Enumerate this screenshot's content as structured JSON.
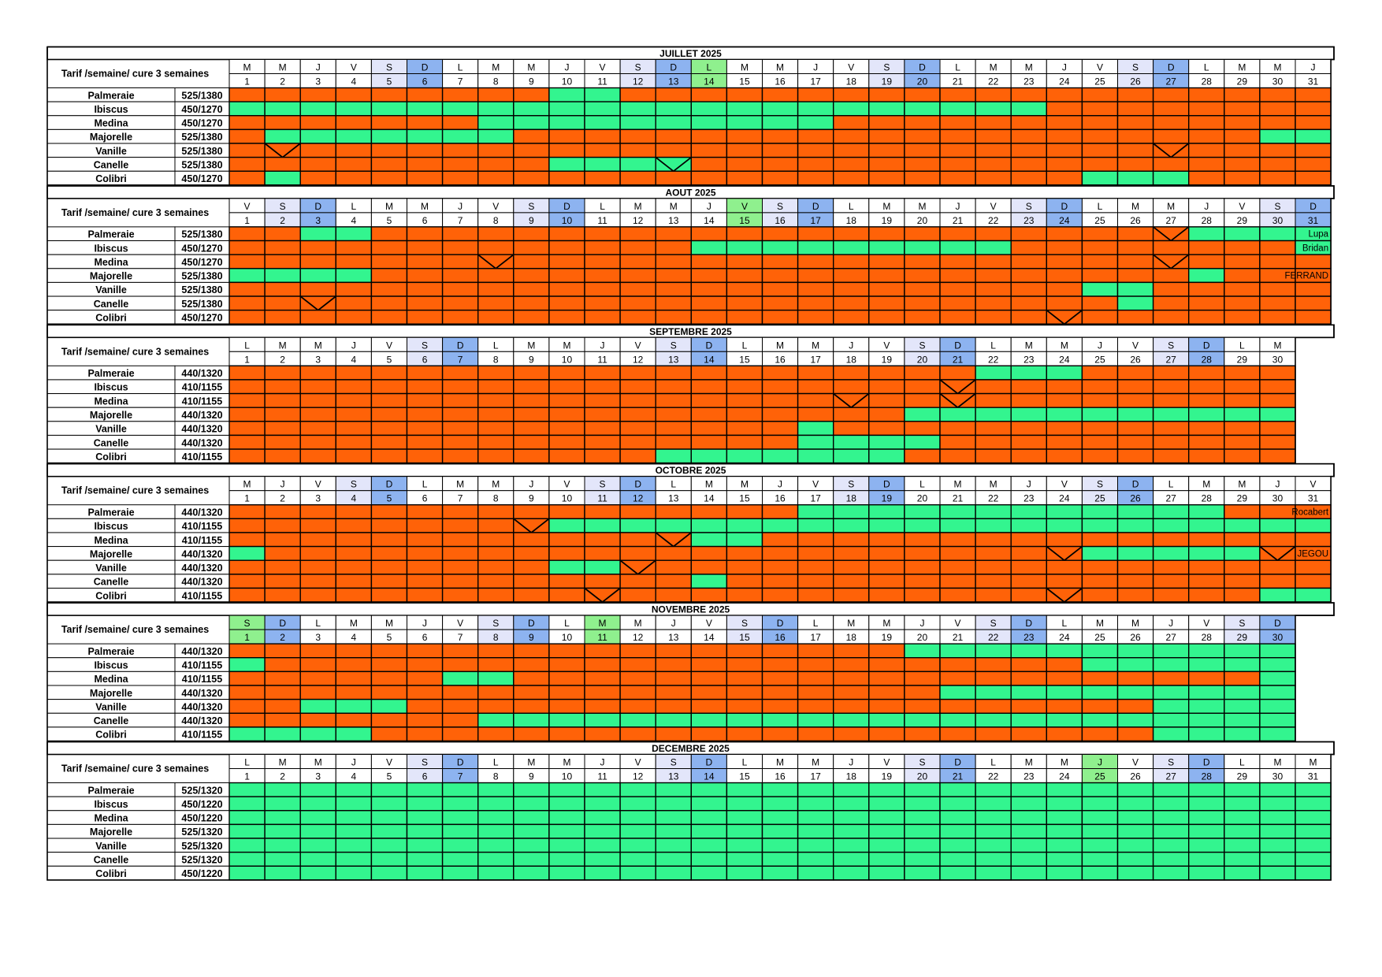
{
  "tarif_label": "Tarif /semaine/ cure 3 semaines",
  "colors": {
    "available": "#33F58F",
    "booked": "#FF6208",
    "sunday": "#8DB3F0",
    "saturday": "#E3E6FA",
    "holiday": "#8FF08E"
  },
  "legend": {
    "available": "green",
    "booked": "orange"
  },
  "months": [
    {
      "title": "JUILLET 2025",
      "days": [
        "M",
        "M",
        "J",
        "V",
        "S",
        "D",
        "L",
        "M",
        "M",
        "J",
        "V",
        "S",
        "D",
        "L",
        "M",
        "M",
        "J",
        "V",
        "S",
        "D",
        "L",
        "M",
        "M",
        "J",
        "V",
        "S",
        "D",
        "L",
        "M",
        "M",
        "J"
      ],
      "holidays": [
        14
      ],
      "rows": [
        {
          "name": "Palmeraie",
          "tarif": "525/1380",
          "green": [
            [
              10,
              11
            ]
          ],
          "ticks": []
        },
        {
          "name": "Ibiscus",
          "tarif": "450/1270",
          "green": [
            [
              1,
              23
            ]
          ],
          "ticks": []
        },
        {
          "name": "Medina",
          "tarif": "450/1270",
          "green": [
            [
              8,
              17
            ]
          ],
          "ticks": []
        },
        {
          "name": "Majorelle",
          "tarif": "525/1380",
          "green": [
            [
              2,
              8
            ],
            [
              30,
              31
            ]
          ],
          "ticks": []
        },
        {
          "name": "Vanille",
          "tarif": "525/1380",
          "green": [],
          "ticks": [
            2,
            27
          ]
        },
        {
          "name": "Canelle",
          "tarif": "525/1380",
          "green": [
            [
              10,
              13
            ]
          ],
          "ticks": [
            13
          ]
        },
        {
          "name": "Colibri",
          "tarif": "450/1270",
          "green": [
            [
              2,
              2
            ],
            [
              25,
              27
            ]
          ],
          "ticks": []
        }
      ]
    },
    {
      "title": "AOUT 2025",
      "days": [
        "V",
        "S",
        "D",
        "L",
        "M",
        "M",
        "J",
        "V",
        "S",
        "D",
        "L",
        "M",
        "M",
        "J",
        "V",
        "S",
        "D",
        "L",
        "M",
        "M",
        "J",
        "V",
        "S",
        "D",
        "L",
        "M",
        "M",
        "J",
        "V",
        "S",
        "D"
      ],
      "holidays": [
        15
      ],
      "rows": [
        {
          "name": "Palmeraie",
          "tarif": "525/1380",
          "green": [
            [
              3,
              4
            ],
            [
              28,
              31
            ]
          ],
          "ticks": [
            27
          ],
          "note": "Lupa"
        },
        {
          "name": "Ibiscus",
          "tarif": "450/1270",
          "green": [
            [
              14,
              22
            ],
            [
              31,
              31
            ]
          ],
          "ticks": [],
          "note": "Bridan"
        },
        {
          "name": "Medina",
          "tarif": "450/1270",
          "green": [],
          "ticks": [
            8,
            27
          ]
        },
        {
          "name": "Majorelle",
          "tarif": "525/1380",
          "green": [
            [
              1,
              4
            ],
            [
              28,
              28
            ]
          ],
          "ticks": [],
          "note": "FERRAND"
        },
        {
          "name": "Vanille",
          "tarif": "525/1380",
          "green": [
            [
              25,
              26
            ]
          ],
          "ticks": []
        },
        {
          "name": "Canelle",
          "tarif": "525/1380",
          "green": [
            [
              26,
              26
            ]
          ],
          "ticks": [
            3
          ]
        },
        {
          "name": "Colibri",
          "tarif": "450/1270",
          "green": [],
          "ticks": [
            24
          ]
        }
      ]
    },
    {
      "title": "SEPTEMBRE 2025",
      "days": [
        "L",
        "M",
        "M",
        "J",
        "V",
        "S",
        "D",
        "L",
        "M",
        "M",
        "J",
        "V",
        "S",
        "D",
        "L",
        "M",
        "M",
        "J",
        "V",
        "S",
        "D",
        "L",
        "M",
        "M",
        "J",
        "V",
        "S",
        "D",
        "L",
        "M"
      ],
      "holidays": [],
      "rows": [
        {
          "name": "Palmeraie",
          "tarif": "440/1320",
          "green": [
            [
              22,
              24
            ]
          ],
          "ticks": []
        },
        {
          "name": "Ibiscus",
          "tarif": "410/1155",
          "green": [],
          "ticks": [
            21
          ]
        },
        {
          "name": "Medina",
          "tarif": "410/1155",
          "green": [],
          "ticks": [
            18,
            21
          ]
        },
        {
          "name": "Majorelle",
          "tarif": "440/1320",
          "green": [
            [
              20,
              30
            ]
          ],
          "ticks": []
        },
        {
          "name": "Vanille",
          "tarif": "440/1320",
          "green": [
            [
              17,
              17
            ]
          ],
          "ticks": []
        },
        {
          "name": "Canelle",
          "tarif": "440/1320",
          "green": [
            [
              17,
              20
            ]
          ],
          "ticks": []
        },
        {
          "name": "Colibri",
          "tarif": "410/1155",
          "green": [
            [
              13,
              19
            ]
          ],
          "ticks": []
        }
      ]
    },
    {
      "title": "OCTOBRE 2025",
      "days": [
        "M",
        "J",
        "V",
        "S",
        "D",
        "L",
        "M",
        "M",
        "J",
        "V",
        "S",
        "D",
        "L",
        "M",
        "M",
        "J",
        "V",
        "S",
        "D",
        "L",
        "M",
        "M",
        "J",
        "V",
        "S",
        "D",
        "L",
        "M",
        "M",
        "J",
        "V"
      ],
      "holidays": [],
      "rows": [
        {
          "name": "Palmeraie",
          "tarif": "440/1320",
          "green": [
            [
              17,
              28
            ]
          ],
          "ticks": [],
          "note": "Rocabert"
        },
        {
          "name": "Ibiscus",
          "tarif": "410/1155",
          "green": [
            [
              10,
              31
            ]
          ],
          "ticks": [
            9
          ]
        },
        {
          "name": "Medina",
          "tarif": "410/1155",
          "green": [
            [
              14,
              15
            ]
          ],
          "ticks": [
            13
          ]
        },
        {
          "name": "Majorelle",
          "tarif": "440/1320",
          "green": [
            [
              1,
              1
            ],
            [
              25,
              29
            ]
          ],
          "ticks": [
            24,
            30
          ],
          "note": "JEGOU"
        },
        {
          "name": "Vanille",
          "tarif": "440/1320",
          "green": [
            [
              10,
              11
            ]
          ],
          "ticks": [
            12
          ]
        },
        {
          "name": "Canelle",
          "tarif": "440/1320",
          "green": [
            [
              14,
              14
            ]
          ],
          "ticks": []
        },
        {
          "name": "Colibri",
          "tarif": "410/1155",
          "green": [
            [
              30,
              31
            ]
          ],
          "ticks": [
            11,
            24
          ]
        }
      ]
    },
    {
      "title": "NOVEMBRE 2025",
      "days": [
        "S",
        "D",
        "L",
        "M",
        "M",
        "J",
        "V",
        "S",
        "D",
        "L",
        "M",
        "M",
        "J",
        "V",
        "S",
        "D",
        "L",
        "M",
        "M",
        "J",
        "V",
        "S",
        "D",
        "L",
        "M",
        "M",
        "J",
        "V",
        "S",
        "D"
      ],
      "holidays": [
        1,
        11
      ],
      "rows": [
        {
          "name": "Palmeraie",
          "tarif": "440/1320",
          "green": [
            [
              20,
              30
            ]
          ],
          "ticks": []
        },
        {
          "name": "Ibiscus",
          "tarif": "410/1155",
          "green": [
            [
              1,
              1
            ],
            [
              25,
              30
            ]
          ],
          "ticks": []
        },
        {
          "name": "Medina",
          "tarif": "410/1155",
          "green": [
            [
              7,
              8
            ],
            [
              30,
              30
            ]
          ],
          "ticks": []
        },
        {
          "name": "Majorelle",
          "tarif": "440/1320",
          "green": [
            [
              21,
              30
            ]
          ],
          "ticks": []
        },
        {
          "name": "Vanille",
          "tarif": "440/1320",
          "green": [
            [
              3,
              5
            ],
            [
              27,
              30
            ]
          ],
          "ticks": []
        },
        {
          "name": "Canelle",
          "tarif": "440/1320",
          "green": [
            [
              8,
              30
            ]
          ],
          "ticks": []
        },
        {
          "name": "Colibri",
          "tarif": "410/1155",
          "green": [
            [
              1,
              4
            ],
            [
              27,
              30
            ]
          ],
          "ticks": []
        }
      ]
    },
    {
      "title": "DECEMBRE 2025",
      "days": [
        "L",
        "M",
        "M",
        "J",
        "V",
        "S",
        "D",
        "L",
        "M",
        "M",
        "J",
        "V",
        "S",
        "D",
        "L",
        "M",
        "M",
        "J",
        "V",
        "S",
        "D",
        "L",
        "M",
        "M",
        "J",
        "V",
        "S",
        "D",
        "L",
        "M",
        "M"
      ],
      "holidays": [
        25
      ],
      "rows": [
        {
          "name": "Palmeraie",
          "tarif": "525/1320",
          "green": [
            [
              1,
              31
            ]
          ],
          "ticks": []
        },
        {
          "name": "Ibiscus",
          "tarif": "450/1220",
          "green": [
            [
              1,
              31
            ]
          ],
          "ticks": []
        },
        {
          "name": "Medina",
          "tarif": "450/1220",
          "green": [
            [
              1,
              31
            ]
          ],
          "ticks": []
        },
        {
          "name": "Majorelle",
          "tarif": "525/1320",
          "green": [
            [
              1,
              31
            ]
          ],
          "ticks": []
        },
        {
          "name": "Vanille",
          "tarif": "525/1320",
          "green": [
            [
              1,
              31
            ]
          ],
          "ticks": []
        },
        {
          "name": "Canelle",
          "tarif": "525/1320",
          "green": [
            [
              1,
              31
            ]
          ],
          "ticks": []
        },
        {
          "name": "Colibri",
          "tarif": "450/1220",
          "green": [
            [
              1,
              31
            ]
          ],
          "ticks": []
        }
      ]
    }
  ]
}
